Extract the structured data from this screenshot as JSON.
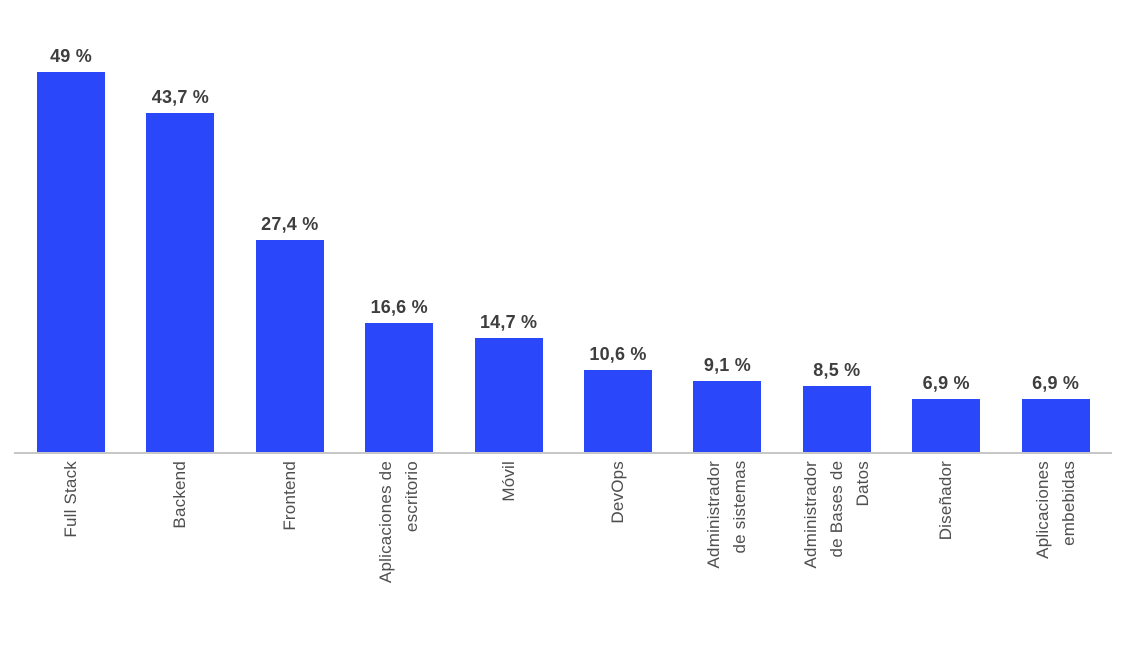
{
  "chart_data": {
    "type": "bar",
    "orientation": "vertical",
    "title": "",
    "xlabel": "",
    "ylabel": "",
    "grid": false,
    "legend": null,
    "ylim": [
      0,
      58.4
    ],
    "x_tick_rotation": 90,
    "categories": [
      "Full Stack",
      "Backend",
      "Frontend",
      "Aplicaciones de\nescritorio",
      "Móvil",
      "DevOps",
      "Administrador\nde sistemas",
      "Administrador\nde Bases de\nDatos",
      "Diseñador",
      "Aplicaciones\nembebidas"
    ],
    "values": [
      49,
      43.7,
      27.4,
      16.6,
      14.7,
      10.6,
      9.1,
      8.5,
      6.9,
      6.9
    ],
    "value_labels": [
      "49 %",
      "43,7 %",
      "27,4 %",
      "16,6 %",
      "14,7 %",
      "10,6 %",
      "9,1 %",
      "8,5 %",
      "6,9 %",
      "6,9 %"
    ],
    "colors": {
      "bar": "#2A47FA",
      "value_label": "#3E3E3E",
      "tick_label": "#4F4F4F",
      "axis_line": "#C7C7C7",
      "background": "#FFFFFF"
    }
  }
}
